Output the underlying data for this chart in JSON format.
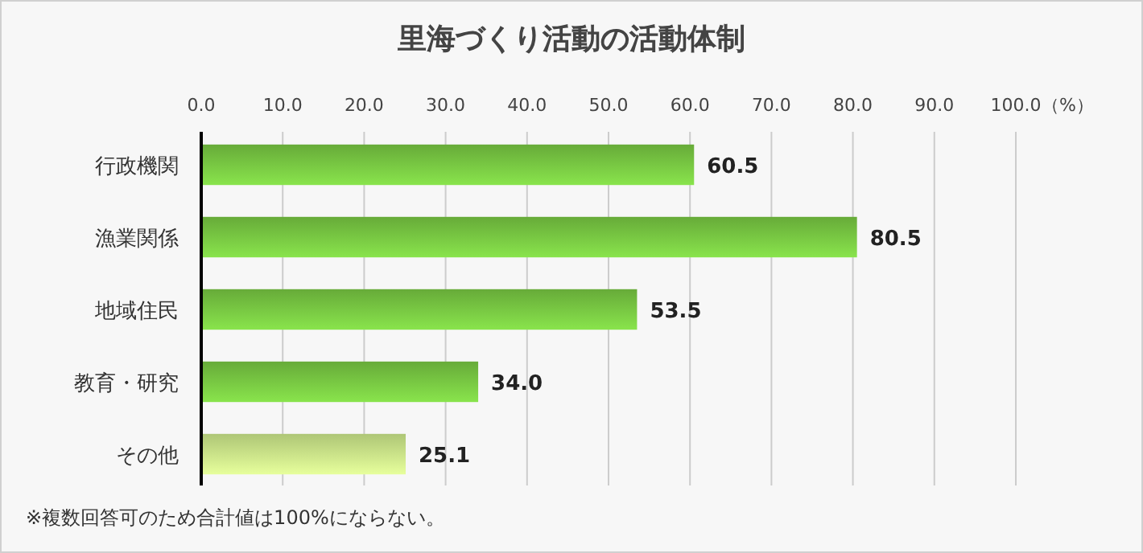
{
  "chart_data": {
    "type": "bar",
    "orientation": "horizontal",
    "title": "里海づくり活動の活動体制",
    "xlabel": "（%）",
    "categories": [
      "行政機関",
      "漁業関係",
      "地域住民",
      "教育・研究",
      "その他"
    ],
    "values": [
      60.5,
      80.5,
      53.5,
      34.0,
      25.1
    ],
    "colors": [
      "#79c943",
      "#79c943",
      "#79c943",
      "#79c943",
      "#cce88a"
    ],
    "value_labels": [
      "60.5",
      "80.5",
      "53.5",
      "34.0",
      "25.1"
    ],
    "xlim": [
      0,
      100
    ],
    "xticks": [
      {
        "value": 0,
        "label": "0.0"
      },
      {
        "value": 10,
        "label": "10.0"
      },
      {
        "value": 20,
        "label": "20.0"
      },
      {
        "value": 30,
        "label": "30.0"
      },
      {
        "value": 40,
        "label": "40.0"
      },
      {
        "value": 50,
        "label": "50.0"
      },
      {
        "value": 60,
        "label": "60.0"
      },
      {
        "value": 70,
        "label": "70.0"
      },
      {
        "value": 80,
        "label": "80.0"
      },
      {
        "value": 90,
        "label": "90.0"
      },
      {
        "value": 100,
        "label": "100.0"
      }
    ],
    "grid": "x",
    "annotations": [
      "※複数回答可のため合計値は100%にならない。"
    ]
  }
}
